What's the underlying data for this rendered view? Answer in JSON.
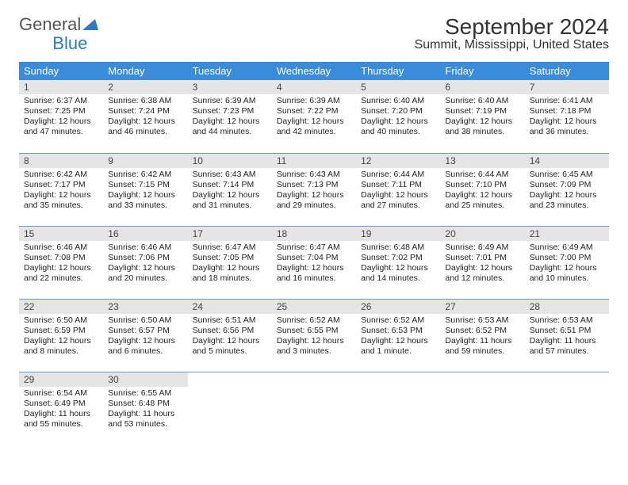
{
  "brand": {
    "word1": "General",
    "word2": "Blue"
  },
  "title": "September 2024",
  "subtitle": "Summit, Mississippi, United States",
  "colors": {
    "header_bg": "#3a8bd8",
    "header_fg": "#ffffff",
    "daynum_bg": "#e5e5e5",
    "row_divider": "#6a9bc9",
    "brand_blue": "#2f79c3",
    "text": "#222222",
    "background": "#ffffff"
  },
  "fonts": {
    "title_pt": 28,
    "subtitle_pt": 16,
    "header_pt": 13,
    "daynum_pt": 12,
    "body_pt": 10.5
  },
  "dayNames": [
    "Sunday",
    "Monday",
    "Tuesday",
    "Wednesday",
    "Thursday",
    "Friday",
    "Saturday"
  ],
  "layout": {
    "columns": 7,
    "rows": 5,
    "first_weekday_index": 0,
    "days_in_month": 30
  },
  "days": [
    {
      "n": 1,
      "sunrise": "6:37 AM",
      "sunset": "7:25 PM",
      "daylight": "12 hours and 47 minutes."
    },
    {
      "n": 2,
      "sunrise": "6:38 AM",
      "sunset": "7:24 PM",
      "daylight": "12 hours and 46 minutes."
    },
    {
      "n": 3,
      "sunrise": "6:39 AM",
      "sunset": "7:23 PM",
      "daylight": "12 hours and 44 minutes."
    },
    {
      "n": 4,
      "sunrise": "6:39 AM",
      "sunset": "7:22 PM",
      "daylight": "12 hours and 42 minutes."
    },
    {
      "n": 5,
      "sunrise": "6:40 AM",
      "sunset": "7:20 PM",
      "daylight": "12 hours and 40 minutes."
    },
    {
      "n": 6,
      "sunrise": "6:40 AM",
      "sunset": "7:19 PM",
      "daylight": "12 hours and 38 minutes."
    },
    {
      "n": 7,
      "sunrise": "6:41 AM",
      "sunset": "7:18 PM",
      "daylight": "12 hours and 36 minutes."
    },
    {
      "n": 8,
      "sunrise": "6:42 AM",
      "sunset": "7:17 PM",
      "daylight": "12 hours and 35 minutes."
    },
    {
      "n": 9,
      "sunrise": "6:42 AM",
      "sunset": "7:15 PM",
      "daylight": "12 hours and 33 minutes."
    },
    {
      "n": 10,
      "sunrise": "6:43 AM",
      "sunset": "7:14 PM",
      "daylight": "12 hours and 31 minutes."
    },
    {
      "n": 11,
      "sunrise": "6:43 AM",
      "sunset": "7:13 PM",
      "daylight": "12 hours and 29 minutes."
    },
    {
      "n": 12,
      "sunrise": "6:44 AM",
      "sunset": "7:11 PM",
      "daylight": "12 hours and 27 minutes."
    },
    {
      "n": 13,
      "sunrise": "6:44 AM",
      "sunset": "7:10 PM",
      "daylight": "12 hours and 25 minutes."
    },
    {
      "n": 14,
      "sunrise": "6:45 AM",
      "sunset": "7:09 PM",
      "daylight": "12 hours and 23 minutes."
    },
    {
      "n": 15,
      "sunrise": "6:46 AM",
      "sunset": "7:08 PM",
      "daylight": "12 hours and 22 minutes."
    },
    {
      "n": 16,
      "sunrise": "6:46 AM",
      "sunset": "7:06 PM",
      "daylight": "12 hours and 20 minutes."
    },
    {
      "n": 17,
      "sunrise": "6:47 AM",
      "sunset": "7:05 PM",
      "daylight": "12 hours and 18 minutes."
    },
    {
      "n": 18,
      "sunrise": "6:47 AM",
      "sunset": "7:04 PM",
      "daylight": "12 hours and 16 minutes."
    },
    {
      "n": 19,
      "sunrise": "6:48 AM",
      "sunset": "7:02 PM",
      "daylight": "12 hours and 14 minutes."
    },
    {
      "n": 20,
      "sunrise": "6:49 AM",
      "sunset": "7:01 PM",
      "daylight": "12 hours and 12 minutes."
    },
    {
      "n": 21,
      "sunrise": "6:49 AM",
      "sunset": "7:00 PM",
      "daylight": "12 hours and 10 minutes."
    },
    {
      "n": 22,
      "sunrise": "6:50 AM",
      "sunset": "6:59 PM",
      "daylight": "12 hours and 8 minutes."
    },
    {
      "n": 23,
      "sunrise": "6:50 AM",
      "sunset": "6:57 PM",
      "daylight": "12 hours and 6 minutes."
    },
    {
      "n": 24,
      "sunrise": "6:51 AM",
      "sunset": "6:56 PM",
      "daylight": "12 hours and 5 minutes."
    },
    {
      "n": 25,
      "sunrise": "6:52 AM",
      "sunset": "6:55 PM",
      "daylight": "12 hours and 3 minutes."
    },
    {
      "n": 26,
      "sunrise": "6:52 AM",
      "sunset": "6:53 PM",
      "daylight": "12 hours and 1 minute."
    },
    {
      "n": 27,
      "sunrise": "6:53 AM",
      "sunset": "6:52 PM",
      "daylight": "11 hours and 59 minutes."
    },
    {
      "n": 28,
      "sunrise": "6:53 AM",
      "sunset": "6:51 PM",
      "daylight": "11 hours and 57 minutes."
    },
    {
      "n": 29,
      "sunrise": "6:54 AM",
      "sunset": "6:49 PM",
      "daylight": "11 hours and 55 minutes."
    },
    {
      "n": 30,
      "sunrise": "6:55 AM",
      "sunset": "6:48 PM",
      "daylight": "11 hours and 53 minutes."
    }
  ],
  "labels": {
    "sunrise": "Sunrise:",
    "sunset": "Sunset:",
    "daylight": "Daylight:"
  }
}
